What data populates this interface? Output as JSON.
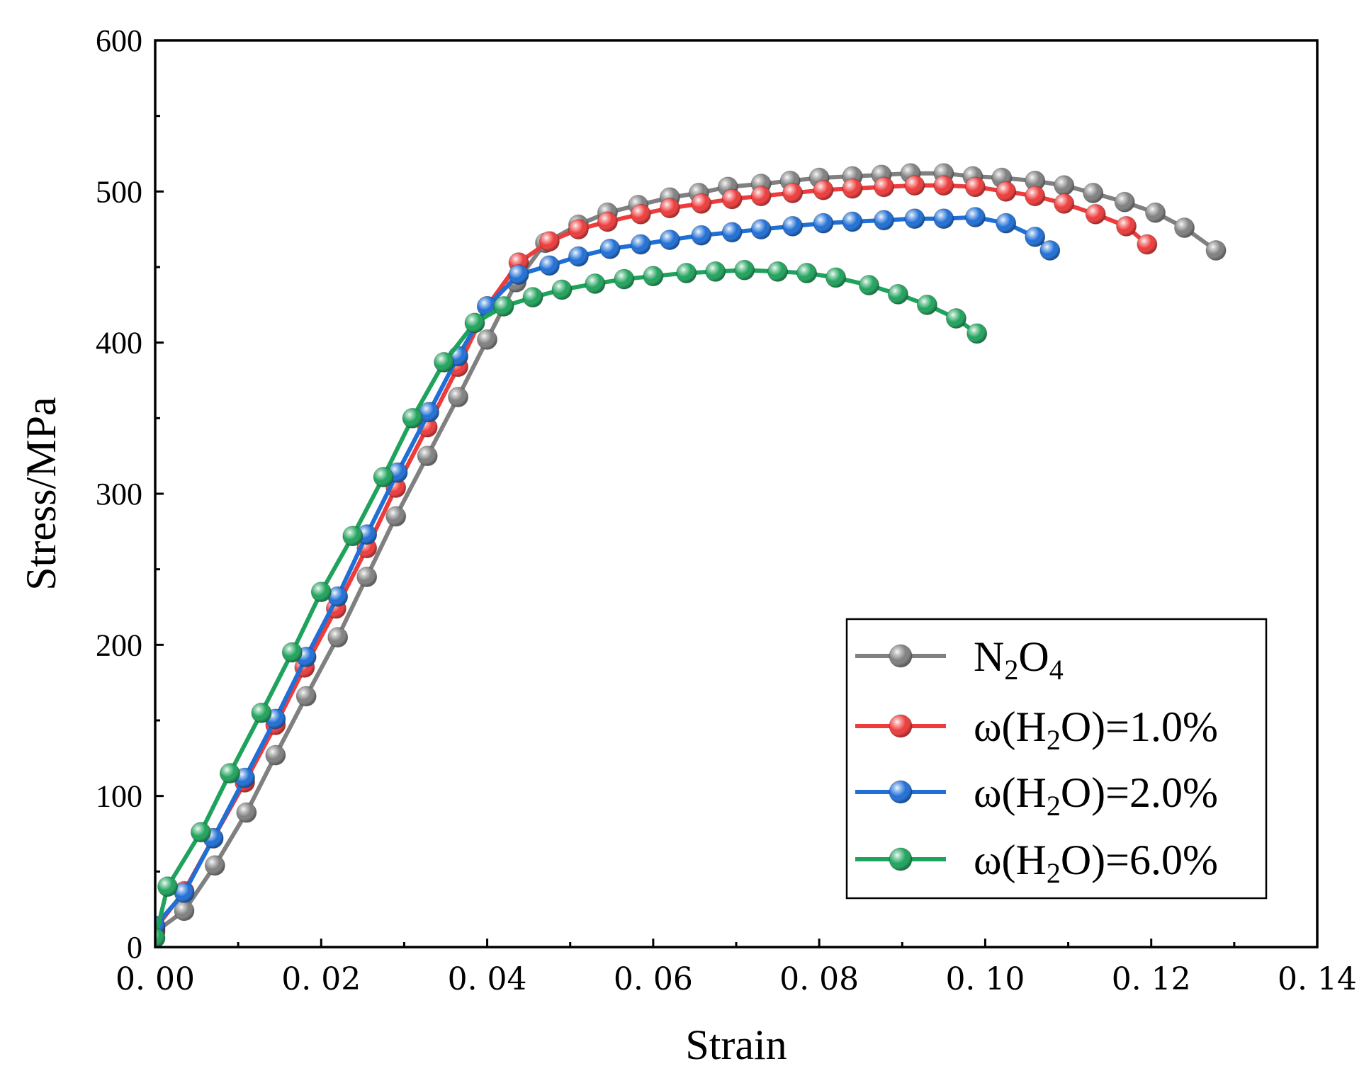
{
  "chart_data": {
    "type": "line",
    "title": "",
    "xlabel": "Strain",
    "ylabel": "Stress/MPa",
    "xlim": [
      0,
      0.14
    ],
    "ylim": [
      0,
      600
    ],
    "xticks": [
      0,
      0.02,
      0.04,
      0.06,
      0.08,
      0.1,
      0.12,
      0.14
    ],
    "xtick_labels": [
      "0. 00",
      "0. 02",
      "0. 04",
      "0. 06",
      "0. 08",
      "0. 10",
      "0. 12",
      "0. 14"
    ],
    "yticks": [
      0,
      100,
      200,
      300,
      400,
      500,
      600
    ],
    "ytick_labels": [
      "0",
      "100",
      "200",
      "300",
      "400",
      "500",
      "600"
    ],
    "grid": false,
    "legend_position": "bottom-right",
    "series": [
      {
        "name": "N2O4",
        "legend": {
          "base": "N",
          "sub1": "2",
          "mid": "O",
          "sub2": "4"
        },
        "color": "#808080",
        "x": [
          0.0,
          0.0035,
          0.0072,
          0.011,
          0.0145,
          0.0182,
          0.022,
          0.0255,
          0.029,
          0.0328,
          0.0365,
          0.04,
          0.0435,
          0.047,
          0.051,
          0.0545,
          0.0582,
          0.062,
          0.0655,
          0.069,
          0.073,
          0.0765,
          0.08,
          0.084,
          0.0875,
          0.091,
          0.095,
          0.0985,
          0.102,
          0.106,
          0.1095,
          0.113,
          0.1168,
          0.1205,
          0.124,
          0.1278
        ],
        "y": [
          10,
          24,
          54,
          89,
          127,
          166,
          205,
          245,
          285,
          325,
          364,
          402,
          440,
          466,
          478,
          486,
          491,
          496,
          499,
          503,
          505,
          507,
          509,
          510,
          511,
          512,
          512,
          510,
          509,
          507,
          504,
          499,
          493,
          486,
          476,
          461
        ]
      },
      {
        "name": "ω(H2O)=1.0%",
        "legend": {
          "base": "ω(H",
          "sub1": "2",
          "mid": "O)=1.0%",
          "sub2": ""
        },
        "color": "#ee3b3b",
        "x": [
          0.0,
          0.0035,
          0.007,
          0.0108,
          0.0145,
          0.018,
          0.0218,
          0.0255,
          0.029,
          0.0328,
          0.0365,
          0.04,
          0.0438,
          0.0475,
          0.051,
          0.0545,
          0.0585,
          0.062,
          0.0658,
          0.0695,
          0.073,
          0.0768,
          0.0805,
          0.084,
          0.0878,
          0.0915,
          0.095,
          0.0988,
          0.1025,
          0.106,
          0.1095,
          0.1133,
          0.117,
          0.1195
        ],
        "y": [
          12,
          37,
          72,
          109,
          147,
          185,
          224,
          264,
          304,
          344,
          384,
          424,
          453,
          467,
          475,
          480,
          485,
          489,
          492,
          495,
          497,
          499,
          501,
          502,
          503,
          504,
          504,
          503,
          500,
          497,
          492,
          485,
          477,
          465
        ]
      },
      {
        "name": "ω(H2O)=2.0%",
        "legend": {
          "base": "ω(H",
          "sub1": "2",
          "mid": "O)=2.0%",
          "sub2": ""
        },
        "color": "#1f6fd6",
        "x": [
          0.0,
          0.0035,
          0.007,
          0.0108,
          0.0145,
          0.0182,
          0.022,
          0.0255,
          0.0292,
          0.033,
          0.0365,
          0.04,
          0.0438,
          0.0475,
          0.051,
          0.0548,
          0.0585,
          0.062,
          0.0658,
          0.0695,
          0.073,
          0.0768,
          0.0805,
          0.084,
          0.0878,
          0.0915,
          0.095,
          0.0988,
          0.1025,
          0.106,
          0.1078
        ],
        "y": [
          14,
          36,
          72,
          112,
          151,
          192,
          232,
          273,
          314,
          354,
          391,
          424,
          445,
          451,
          457,
          462,
          465,
          468,
          471,
          473,
          475,
          477,
          479,
          480,
          481,
          482,
          482,
          483,
          479,
          470,
          461
        ]
      },
      {
        "name": "ω(H2O)=6.0%",
        "legend": {
          "base": "ω(H",
          "sub1": "2",
          "mid": "O)=6.0%",
          "sub2": ""
        },
        "color": "#1fa35c",
        "x": [
          0.0,
          0.0015,
          0.0055,
          0.009,
          0.0128,
          0.0165,
          0.02,
          0.0238,
          0.0275,
          0.031,
          0.0348,
          0.0385,
          0.042,
          0.0455,
          0.049,
          0.053,
          0.0565,
          0.06,
          0.064,
          0.0675,
          0.071,
          0.075,
          0.0785,
          0.082,
          0.086,
          0.0895,
          0.093,
          0.0965,
          0.099
        ],
        "y": [
          6,
          40,
          76,
          115,
          155,
          195,
          235,
          272,
          311,
          350,
          387,
          413,
          424,
          430,
          435,
          439,
          442,
          444,
          446,
          447,
          448,
          447,
          446,
          443,
          438,
          432,
          425,
          416,
          406
        ]
      }
    ]
  }
}
